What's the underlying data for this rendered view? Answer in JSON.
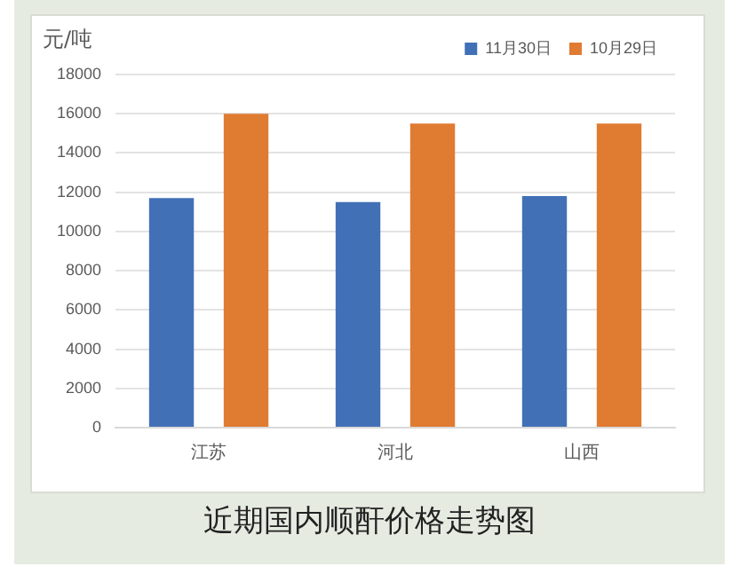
{
  "chart_data": {
    "type": "bar",
    "title": "近期国内顺酐价格走势图",
    "ylabel": "元/吨",
    "categories": [
      "江苏",
      "河北",
      "山西"
    ],
    "series": [
      {
        "name": "11月30日",
        "color": "#4170b6",
        "values": [
          11700,
          11500,
          11800
        ]
      },
      {
        "name": "10月29日",
        "color": "#e07b32",
        "values": [
          16000,
          15500,
          15500
        ]
      }
    ],
    "ylim": [
      0,
      18000
    ],
    "yticks": [
      0,
      2000,
      4000,
      6000,
      8000,
      10000,
      12000,
      14000,
      16000,
      18000
    ],
    "grid": "y",
    "legend": "top right"
  }
}
